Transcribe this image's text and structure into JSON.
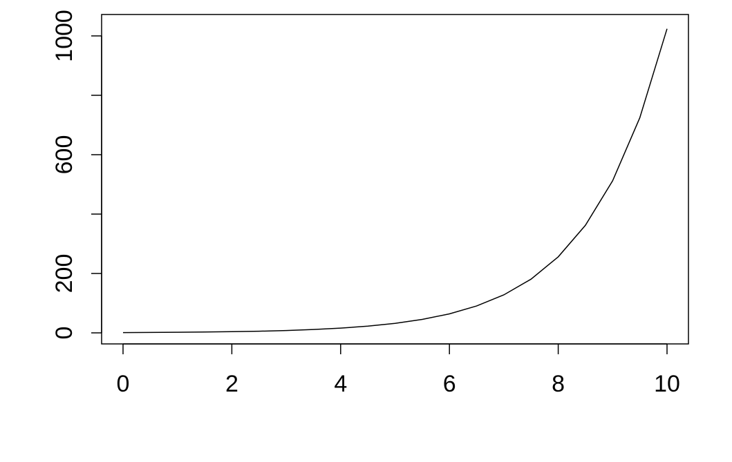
{
  "chart_data": {
    "type": "line",
    "title": "",
    "xlabel": "",
    "ylabel": "",
    "xlim": [
      0,
      10
    ],
    "ylim": [
      0,
      1024
    ],
    "grid": false,
    "line_color": "#000000",
    "x_ticks": [
      0,
      2,
      4,
      6,
      8,
      10
    ],
    "x_tick_labels": [
      "0",
      "2",
      "4",
      "6",
      "8",
      "10"
    ],
    "y_ticks": [
      0,
      200,
      400,
      600,
      800,
      1000
    ],
    "y_tick_labels": [
      "0",
      "200",
      "",
      "600",
      "",
      "1000"
    ],
    "x": [
      0,
      0.5,
      1,
      1.5,
      2,
      2.5,
      3,
      3.5,
      4,
      4.5,
      5,
      5.5,
      6,
      6.5,
      7,
      7.5,
      8,
      8.5,
      9,
      9.5,
      10
    ],
    "y": [
      1,
      1.41,
      2,
      2.83,
      4,
      5.66,
      8,
      11.31,
      16,
      22.63,
      32,
      45.25,
      64,
      90.51,
      128,
      181.02,
      256,
      362.04,
      512,
      724.08,
      1024
    ]
  }
}
